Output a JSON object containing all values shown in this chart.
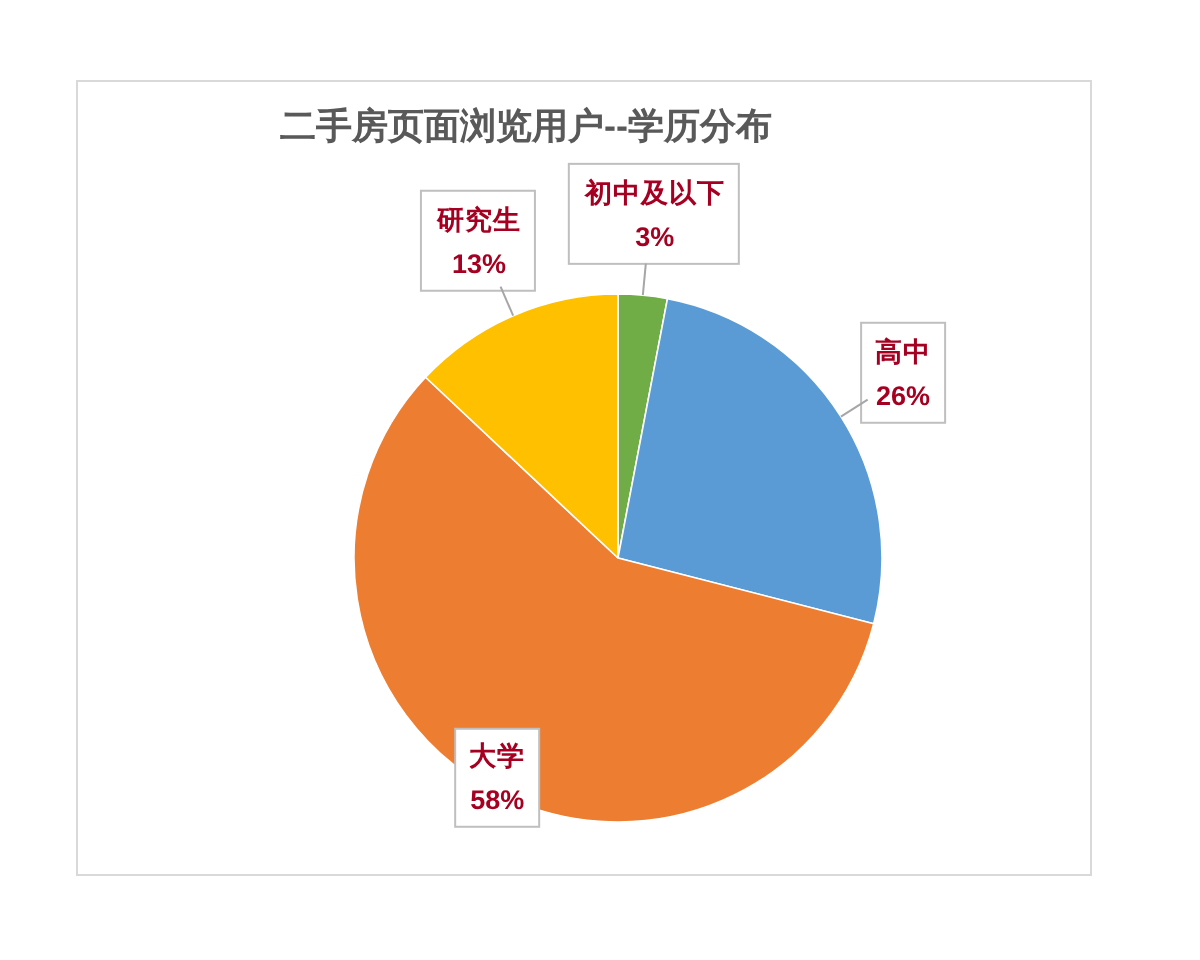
{
  "chart_data": {
    "type": "pie",
    "title": "二手房页面浏览用户--学历分布",
    "categories": [
      "初中及以下",
      "高中",
      "大学",
      "研究生"
    ],
    "values": [
      3,
      26,
      58,
      13
    ],
    "colors": [
      "#70ad47",
      "#5b9bd5",
      "#ed7d31",
      "#ffc000"
    ],
    "value_labels": [
      "3%",
      "26%",
      "58%",
      "13%"
    ]
  }
}
